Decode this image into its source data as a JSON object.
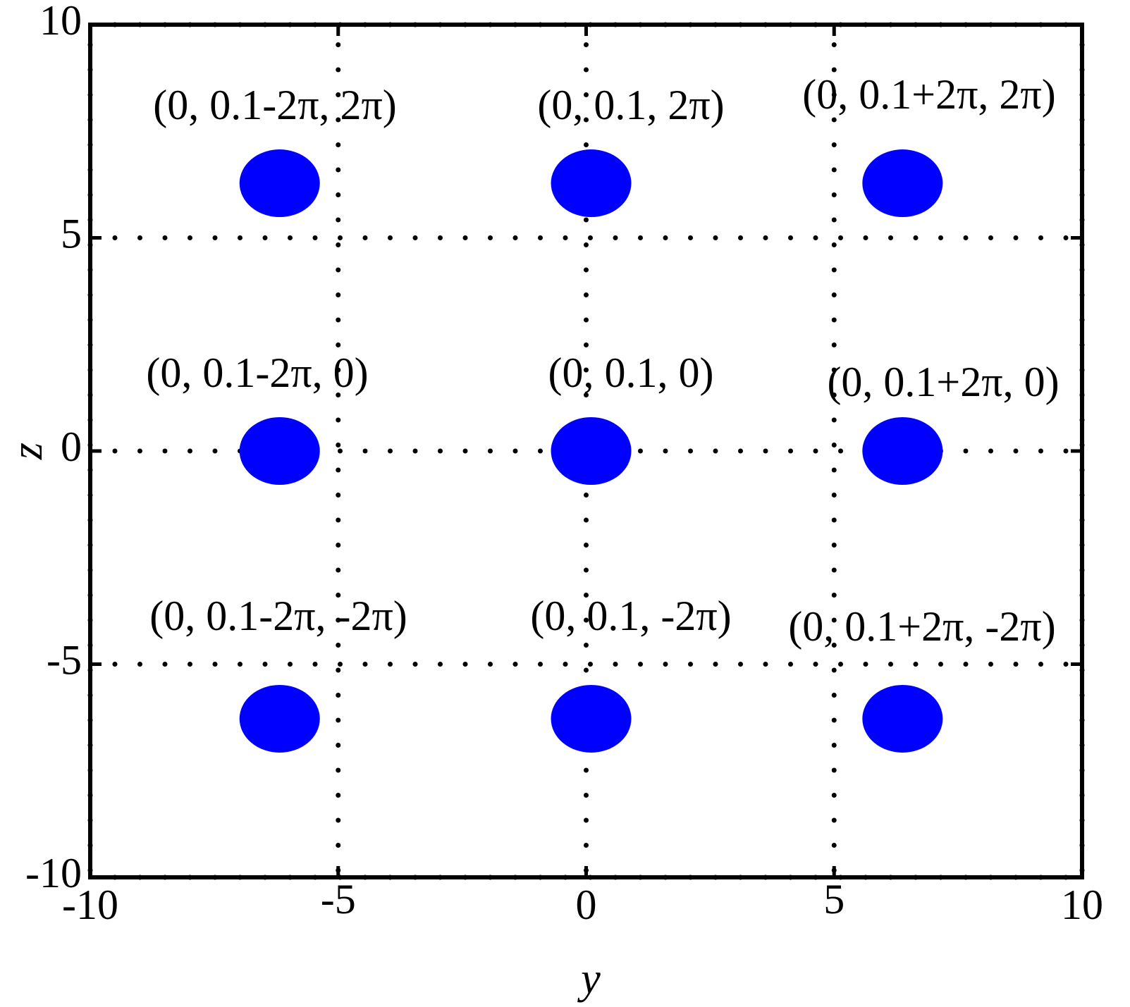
{
  "chart_data": {
    "type": "scatter",
    "x_label": "y",
    "y_label": "z",
    "xlim": [
      -10,
      10
    ],
    "ylim": [
      -10,
      10
    ],
    "xticks": [
      -10,
      -5,
      0,
      5,
      10
    ],
    "yticks": [
      -10,
      -5,
      0,
      5,
      10
    ],
    "grid": true,
    "series": [
      {
        "color": "#0000ff",
        "x": [
          -6.18,
          0.1,
          6.38,
          -6.18,
          0.1,
          6.38,
          -6.18,
          0.1,
          6.38
        ],
        "values": [
          6.28,
          6.28,
          6.28,
          0,
          0,
          0,
          -6.28,
          -6.28,
          -6.28
        ]
      }
    ],
    "annotations": [
      "(0, 0.1-2π, 2π)",
      "(0, 0.1, 2π)",
      "(0, 0.1+2π, 2π)",
      "(0, 0.1-2π, 0)",
      "(0, 0.1, 0)",
      "(0, 0.1+2π, 0)",
      "(0, 0.1-2π, -2π)",
      "(0, 0.1, -2π)",
      "(0, 0.1+2π, -2π)"
    ]
  }
}
